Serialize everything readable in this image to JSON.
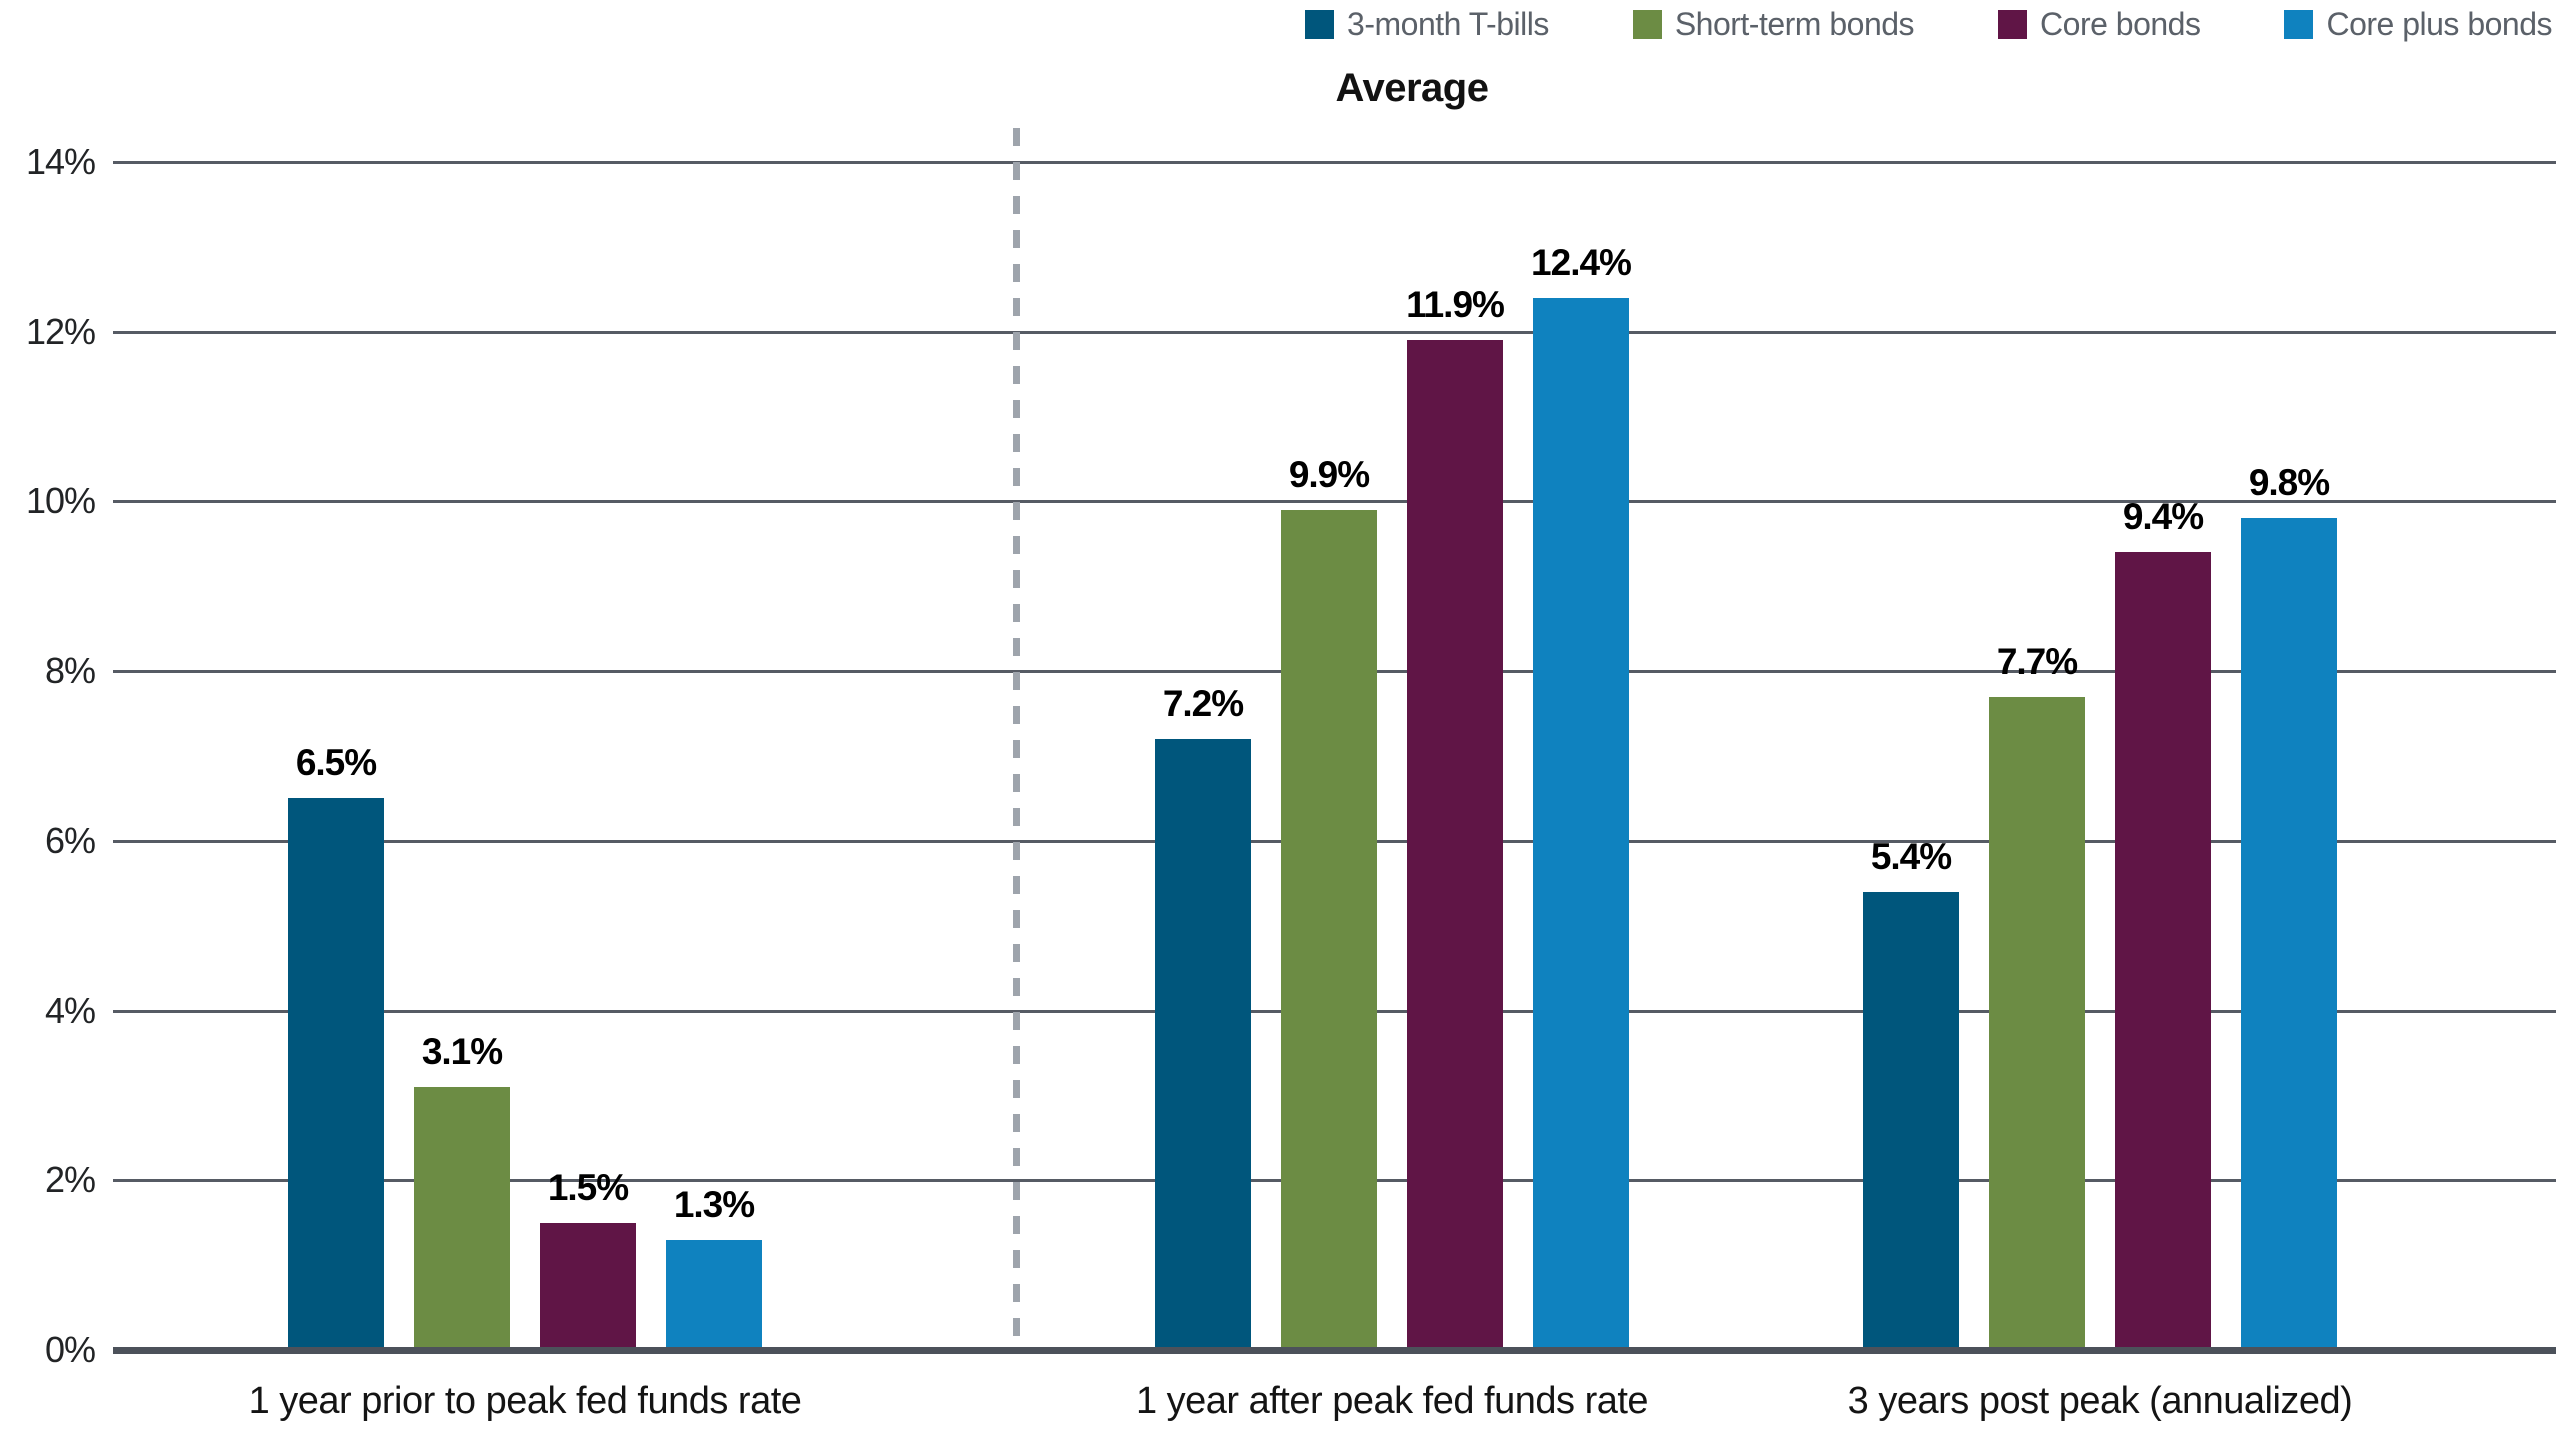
{
  "chart_data": {
    "type": "bar",
    "title": "Average",
    "categories": [
      "1 year prior to peak fed funds rate",
      "1 year after peak fed funds rate",
      "3 years post peak (annualized)"
    ],
    "series": [
      {
        "name": "3-month T-bills",
        "color": "#00567c",
        "values": [
          6.5,
          7.2,
          5.4
        ],
        "labels": [
          "6.5%",
          "7.2%",
          "5.4%"
        ]
      },
      {
        "name": "Short-term bonds",
        "color": "#6c8c44",
        "values": [
          3.1,
          9.9,
          7.7
        ],
        "labels": [
          "3.1%",
          "9.9%",
          "7.7%"
        ]
      },
      {
        "name": "Core bonds",
        "color": "#601546",
        "values": [
          1.5,
          11.9,
          9.4
        ],
        "labels": [
          "1.5%",
          "11.9%",
          "9.4%"
        ]
      },
      {
        "name": "Core plus bonds",
        "color": "#0f82bf",
        "values": [
          1.3,
          12.4,
          9.8
        ],
        "labels": [
          "1.3%",
          "12.4%",
          "9.8%"
        ]
      }
    ],
    "y_ticks": [
      {
        "value": 0,
        "label": "0%"
      },
      {
        "value": 2,
        "label": "2%"
      },
      {
        "value": 4,
        "label": "4%"
      },
      {
        "value": 6,
        "label": "6%"
      },
      {
        "value": 8,
        "label": "8%"
      },
      {
        "value": 10,
        "label": "10%"
      },
      {
        "value": 12,
        "label": "12%"
      },
      {
        "value": 14,
        "label": "14%"
      }
    ],
    "ylim": [
      0,
      14
    ],
    "grid": true,
    "legend_position": "top-right",
    "divider_after_category_index": 0,
    "colors": {
      "gridline": "#565b64",
      "axis": "#4c515a",
      "divider": "#9ea4ac",
      "legend_text": "#5b6169",
      "value_label": "#000000"
    }
  }
}
